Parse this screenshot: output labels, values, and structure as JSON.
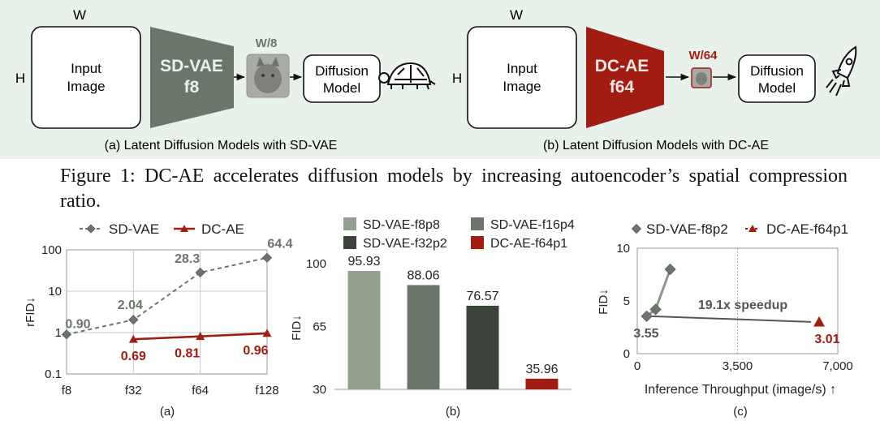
{
  "figure1": {
    "left": {
      "w_label": "W",
      "h_label": "H",
      "input_label_1": "Input",
      "input_label_2": "Image",
      "encoder_line_1": "SD-VAE",
      "encoder_line_2": "f8",
      "latent_label": "W/8",
      "diffusion_line_1": "Diffusion",
      "diffusion_line_2": "Model",
      "subcaption": "(a) Latent Diffusion Models with SD-VAE",
      "symbol": "turtle-icon"
    },
    "right": {
      "w_label": "W",
      "h_label": "H",
      "input_label_1": "Input",
      "input_label_2": "Image",
      "encoder_line_1": "DC-AE",
      "encoder_line_2": "f64",
      "latent_label": "W/64",
      "diffusion_line_1": "Diffusion",
      "diffusion_line_2": "Model",
      "subcaption": "(b) Latent Diffusion Models with DC-AE",
      "symbol": "rocket-icon"
    },
    "caption": "Figure 1: DC-AE accelerates diffusion models by increasing autoencoder’s spatial compression ratio."
  },
  "colors": {
    "sdvae": "#6a7669",
    "dcae": "#a11c12",
    "panel_bg": "#e8f1ea",
    "bar_f8p8": "#93a08e",
    "bar_f16p4": "#6a7669",
    "bar_f32p2": "#3b433a",
    "bar_dcae": "#a11c12"
  },
  "chart_data": [
    {
      "type": "line",
      "panel_label": "(a)",
      "categories": [
        "f8",
        "f32",
        "f64",
        "f128"
      ],
      "yscale": "log",
      "ylim": [
        0.1,
        100
      ],
      "ytick_labels": [
        "0.1",
        "1",
        "10",
        "100"
      ],
      "xlabel": "",
      "ylabel": "rFID↓",
      "legend_position": "top",
      "grid": true,
      "series": [
        {
          "name": "SD-VAE",
          "values": [
            0.9,
            2.04,
            28.3,
            64.4
          ],
          "labels": [
            "0.90",
            "2.04",
            "28.3",
            "64.4"
          ],
          "style": "dashed",
          "marker": "diamond",
          "color": "#6a7669"
        },
        {
          "name": "DC-AE",
          "values": [
            null,
            0.69,
            0.81,
            0.96
          ],
          "labels": [
            "",
            "0.69",
            "0.81",
            "0.96"
          ],
          "style": "solid",
          "marker": "triangle",
          "color": "#a11c12"
        }
      ]
    },
    {
      "type": "bar",
      "panel_label": "(b)",
      "categories": [
        "SD-VAE-f8p8",
        "SD-VAE-f16p4",
        "SD-VAE-f32p2",
        "DC-AE-f64p1"
      ],
      "values": [
        95.93,
        88.06,
        76.57,
        35.96
      ],
      "value_labels": [
        "95.93",
        "88.06",
        "76.57",
        "35.96"
      ],
      "ylim": [
        30,
        100
      ],
      "ytick_labels": [
        "30",
        "65",
        "100"
      ],
      "xlabel": "",
      "ylabel": "FID↓",
      "legend_position": "top",
      "grid": false
    },
    {
      "type": "scatter",
      "panel_label": "(c)",
      "xlabel": "Inference Throughput (image/s) ↑",
      "ylabel": "FID↓",
      "xlim": [
        0,
        7000
      ],
      "ylim": [
        0,
        10
      ],
      "xtick_labels": [
        "0",
        "3,500",
        "7,000"
      ],
      "ytick_labels": [
        "0",
        "5",
        "10"
      ],
      "legend_position": "top",
      "grid": "vertical dotted at 3,500",
      "series": [
        {
          "name": "SD-VAE-f8p2",
          "x": [
            330,
            640,
            1150
          ],
          "y": [
            3.55,
            4.2,
            8.0
          ],
          "marker": "diamond",
          "color": "#6a7669"
        },
        {
          "name": "DC-AE-f64p1",
          "x": [
            6350
          ],
          "y": [
            3.01
          ],
          "marker": "triangle",
          "color": "#a11c12"
        }
      ],
      "annotations": {
        "value_sd": "3.55",
        "value_dc": "3.01",
        "speedup": "19.1x speedup"
      }
    }
  ]
}
